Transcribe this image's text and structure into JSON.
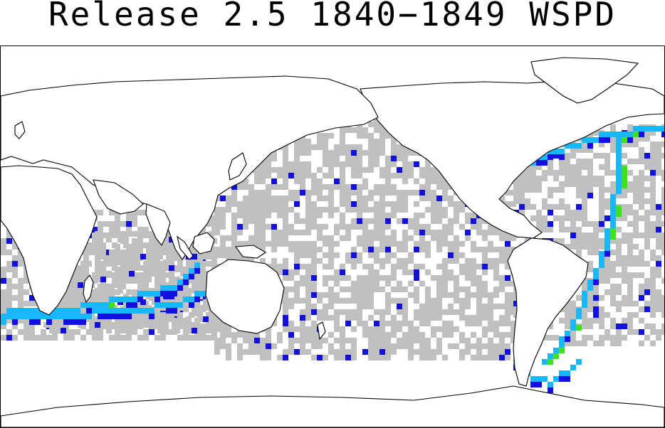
{
  "title": "Release 2.5 1840−1849 WSPD",
  "legend": {
    "colors": {
      "low": "#c0c0c0",
      "medium": "#1010e0",
      "high": "#18b8ff",
      "higher": "#00e0d0",
      "max": "#40e020"
    }
  }
}
